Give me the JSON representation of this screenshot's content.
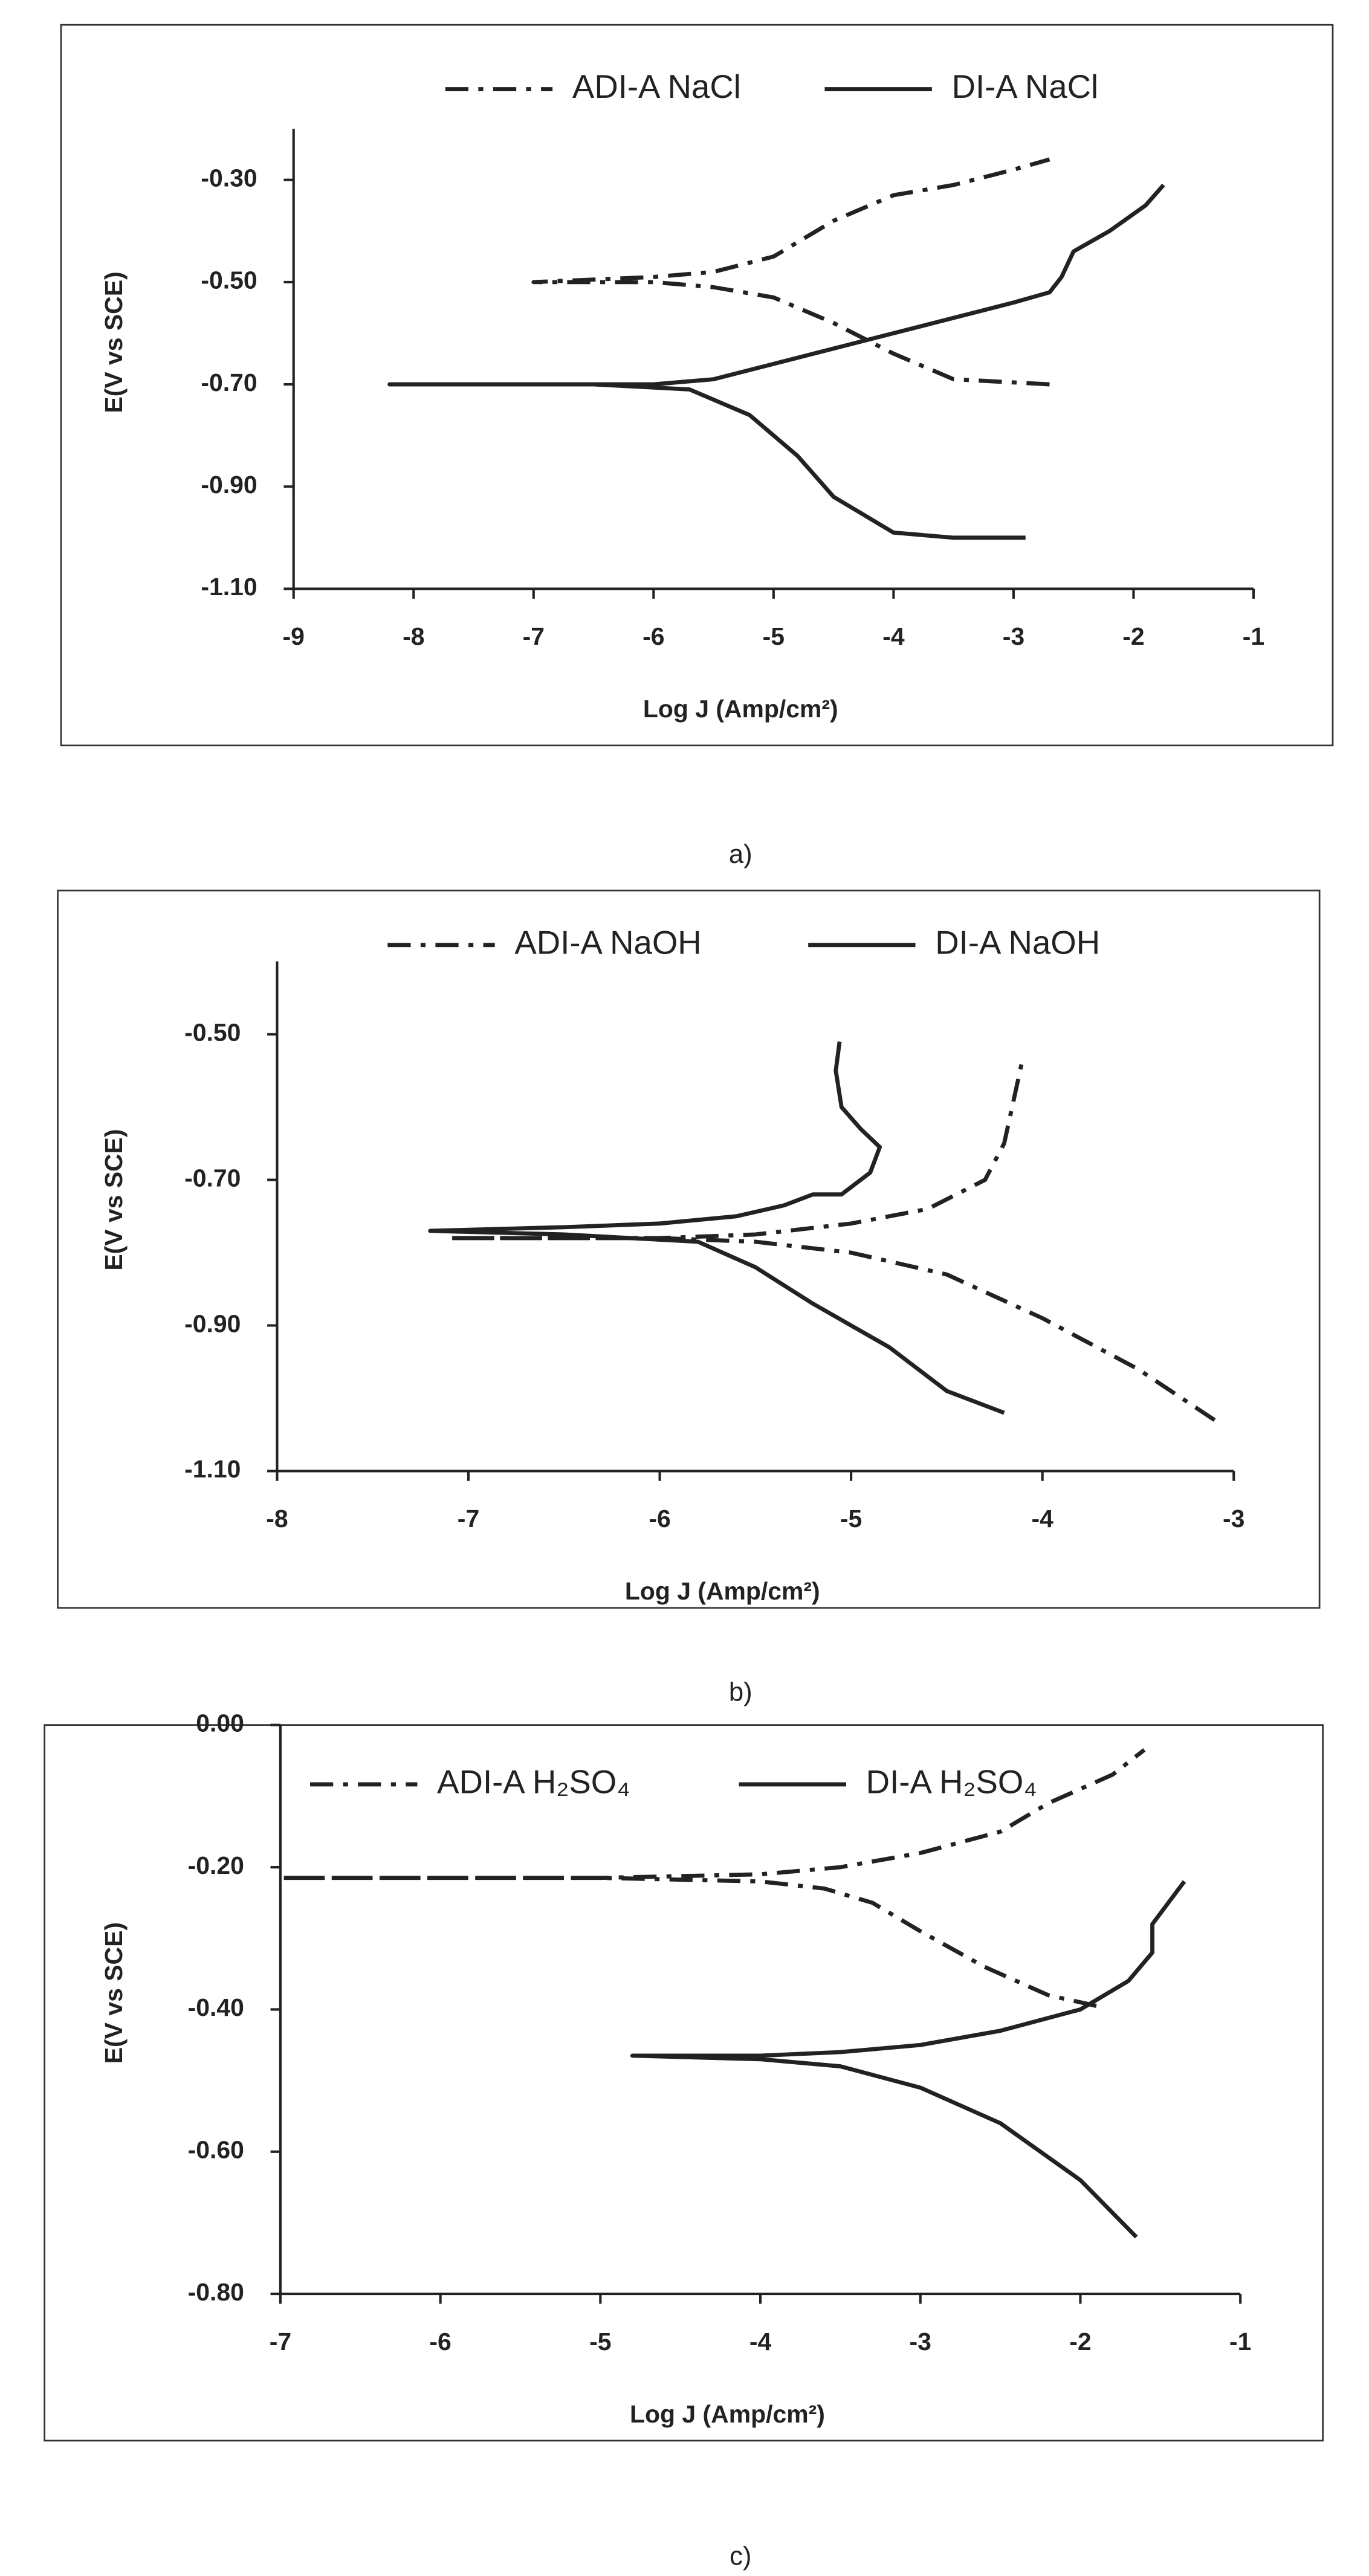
{
  "chart_data": [
    {
      "type": "line",
      "caption": "a)",
      "x_label": "Log J (Amp/cm²)",
      "y_label": "E(V vs SCE)",
      "xlim": [
        -9,
        -1
      ],
      "xticks": [
        -9,
        -8,
        -7,
        -6,
        -5,
        -4,
        -3,
        -2,
        -1
      ],
      "ylim": [
        -1.1,
        -0.2
      ],
      "yticks": [
        {
          "value": -0.3,
          "label": "-0.30"
        },
        {
          "value": -0.5,
          "label": "-0.50"
        },
        {
          "value": -0.7,
          "label": "-0.70"
        },
        {
          "value": -0.9,
          "label": "-0.90"
        },
        {
          "value": -1.1,
          "label": "-1.10"
        }
      ],
      "series": [
        {
          "name": "ADI-A NaCl",
          "color": "#222222",
          "dash": "dash-dot",
          "x": [
            -2.7,
            -3.5,
            -4,
            -4.5,
            -5,
            -5.5,
            -6,
            -7,
            -6,
            -5.5,
            -5,
            -4.5,
            -4,
            -3.5,
            -3,
            -2.7
          ],
          "values": [
            -0.7,
            -0.69,
            -0.64,
            -0.58,
            -0.53,
            -0.51,
            -0.5,
            -0.5,
            -0.49,
            -0.48,
            -0.45,
            -0.38,
            -0.33,
            -0.31,
            -0.28,
            -0.26
          ]
        },
        {
          "name": "DI-A NaCl",
          "color": "#222222",
          "dash": "solid",
          "x": [
            -2.9,
            -3.5,
            -4,
            -4.5,
            -4.8,
            -5.2,
            -5.7,
            -6.5,
            -8.2,
            -6,
            -5.5,
            -5,
            -4.5,
            -4,
            -3.5,
            -3,
            -2.7,
            -2.6,
            -2.5,
            -2.2,
            -1.9,
            -1.75
          ],
          "values": [
            -1.0,
            -1.0,
            -0.99,
            -0.92,
            -0.84,
            -0.76,
            -0.71,
            -0.7,
            -0.7,
            -0.7,
            -0.69,
            -0.66,
            -0.63,
            -0.6,
            -0.57,
            -0.54,
            -0.52,
            -0.49,
            -0.44,
            -0.4,
            -0.35,
            -0.31
          ]
        }
      ]
    },
    {
      "type": "line",
      "caption": "b)",
      "x_label": "Log J (Amp/cm²)",
      "y_label": "E(V vs SCE)",
      "xlim": [
        -8,
        -3
      ],
      "xticks": [
        -8,
        -7,
        -6,
        -5,
        -4,
        -3
      ],
      "ylim": [
        -1.1,
        -0.4
      ],
      "yticks": [
        {
          "value": -0.5,
          "label": "-0.50"
        },
        {
          "value": -0.7,
          "label": "-0.70"
        },
        {
          "value": -0.9,
          "label": "-0.90"
        },
        {
          "value": -1.1,
          "label": "-1.10"
        }
      ],
      "series": [
        {
          "name": "ADI-A NaOH",
          "color": "#222222",
          "dash": "dash-dot",
          "x": [
            -3.1,
            -3.5,
            -4,
            -4.5,
            -5,
            -5.5,
            -6,
            -7.1,
            -6,
            -5.5,
            -5,
            -4.6,
            -4.3,
            -4.2,
            -4.15,
            -4.1
          ],
          "values": [
            -1.03,
            -0.96,
            -0.89,
            -0.83,
            -0.8,
            -0.785,
            -0.78,
            -0.78,
            -0.78,
            -0.775,
            -0.76,
            -0.74,
            -0.7,
            -0.65,
            -0.59,
            -0.53
          ]
        },
        {
          "name": "DI-A NaOH",
          "color": "#222222",
          "dash": "solid",
          "x": [
            -4.2,
            -4.5,
            -4.8,
            -5.2,
            -5.5,
            -5.8,
            -6.5,
            -7.2,
            -6.5,
            -6,
            -5.6,
            -5.35,
            -5.2,
            -5.05,
            -4.9,
            -4.85,
            -4.95,
            -5.05,
            -5.08,
            -5.06
          ],
          "values": [
            -1.02,
            -0.99,
            -0.93,
            -0.87,
            -0.82,
            -0.785,
            -0.775,
            -0.77,
            -0.765,
            -0.76,
            -0.75,
            -0.735,
            -0.72,
            -0.72,
            -0.69,
            -0.655,
            -0.63,
            -0.6,
            -0.55,
            -0.51
          ]
        }
      ]
    },
    {
      "type": "line",
      "caption": "c)",
      "x_label": "Log J (Amp/cm²)",
      "y_label": "E(V vs SCE)",
      "xlim": [
        -7,
        -1
      ],
      "xticks": [
        -7,
        -6,
        -5,
        -4,
        -3,
        -2,
        -1
      ],
      "ylim": [
        -0.8,
        0
      ],
      "yticks": [
        {
          "value": 0,
          "label": "0.00"
        },
        {
          "value": -0.2,
          "label": "-0.20"
        },
        {
          "value": -0.4,
          "label": "-0.40"
        },
        {
          "value": -0.6,
          "label": "-0.60"
        },
        {
          "value": -0.8,
          "label": "-0.80"
        }
      ],
      "series": [
        {
          "name": "ADI-A H₂SO₄",
          "color": "#222222",
          "dash": "dash-dot",
          "x": [
            -1.9,
            -2.2,
            -2.6,
            -3,
            -3.3,
            -3.6,
            -4,
            -5,
            -7,
            -5,
            -4,
            -3.5,
            -3,
            -2.5,
            -2.2,
            -1.8,
            -1.6
          ],
          "values": [
            -0.395,
            -0.38,
            -0.34,
            -0.29,
            -0.25,
            -0.23,
            -0.22,
            -0.215,
            -0.215,
            -0.215,
            -0.21,
            -0.2,
            -0.18,
            -0.15,
            -0.11,
            -0.07,
            -0.035
          ]
        },
        {
          "name": "DI-A H₂SO₄",
          "color": "#222222",
          "dash": "solid",
          "x": [
            -1.65,
            -2,
            -2.5,
            -3,
            -3.5,
            -4,
            -4.8,
            -4,
            -3.5,
            -3,
            -2.5,
            -2,
            -1.7,
            -1.55,
            -1.55,
            -1.35
          ],
          "values": [
            -0.72,
            -0.64,
            -0.56,
            -0.51,
            -0.48,
            -0.47,
            -0.465,
            -0.465,
            -0.46,
            -0.45,
            -0.43,
            -0.4,
            -0.36,
            -0.32,
            -0.28,
            -0.22
          ]
        }
      ]
    }
  ]
}
